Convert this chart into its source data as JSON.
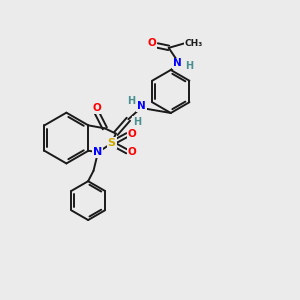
{
  "background_color": "#ebebeb",
  "bond_color": "#1a1a1a",
  "atom_colors": {
    "N": "#0000ff",
    "O": "#ff0000",
    "S": "#ccaa00",
    "H": "#4a9090",
    "C": "#1a1a1a"
  },
  "lw": 1.4
}
